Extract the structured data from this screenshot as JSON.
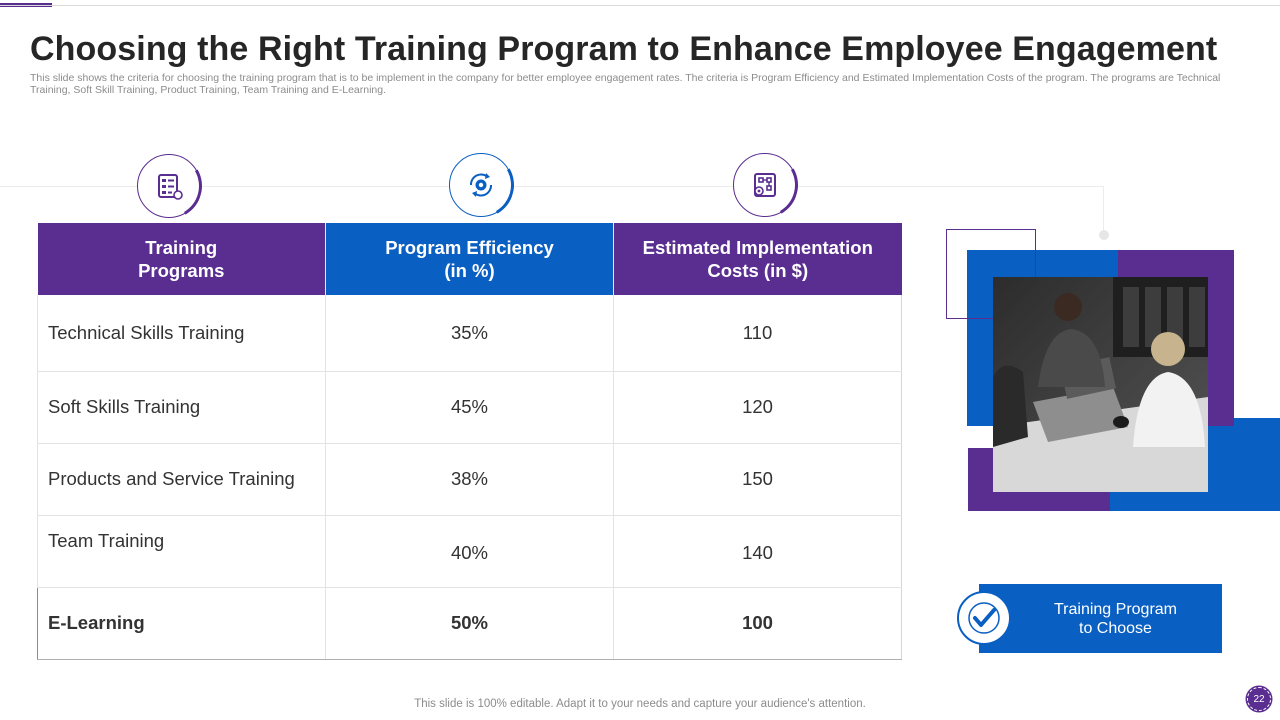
{
  "slide": {
    "title": "Choosing the Right Training Program to Enhance Employee Engagement",
    "subtitle": "This slide shows the criteria for choosing the training program that is to be implement in the company for better employee engagement rates. The criteria is Program Efficiency and Estimated Implementation Costs of the program. The programs are Technical Training, Soft Skill Training, Product Training, Team Training and E-Learning."
  },
  "icons": [
    {
      "name": "checklist-icon"
    },
    {
      "name": "gear-cycle-icon"
    },
    {
      "name": "cost-plan-icon"
    }
  ],
  "table": {
    "headers": {
      "programs": [
        "Training",
        "Programs"
      ],
      "efficiency": [
        "Program Efficiency",
        "(in %)"
      ],
      "costs": [
        "Estimated Implementation",
        "Costs (in $)"
      ]
    },
    "rows": [
      {
        "program": "Technical Skills Training",
        "efficiency": "35%",
        "cost": "110"
      },
      {
        "program": "Soft Skills Training",
        "efficiency": "45%",
        "cost": "120"
      },
      {
        "program": "Products and Service Training",
        "efficiency": "38%",
        "cost": "150"
      },
      {
        "program": "Team Training",
        "efficiency": "40%",
        "cost": "140"
      },
      {
        "program": "E-Learning",
        "efficiency": "50%",
        "cost": "100"
      }
    ]
  },
  "callout": {
    "line1": "Training Program",
    "line2": "to Choose"
  },
  "footer": {
    "text": "This slide is 100% editable. Adapt it to your needs and capture your audience's attention.",
    "page_number": "22"
  },
  "colors": {
    "purple": "#5a2d91",
    "blue": "#0a5fc2"
  }
}
